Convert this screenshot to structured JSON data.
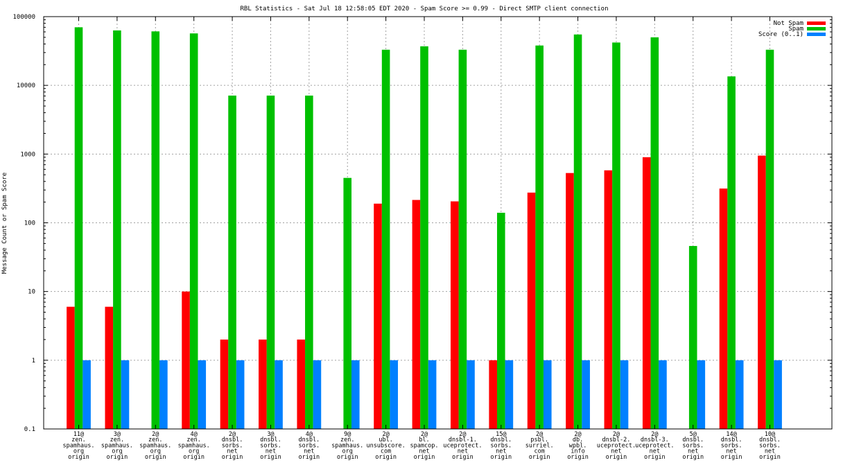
{
  "chart_data": {
    "type": "bar",
    "title": "RBL Statistics - Sat Jul 18 12:58:05 EDT 2020 - Spam Score >= 0.99 - Direct SMTP client connection",
    "ylabel": "Message Count or Spam Score",
    "xlabel": "",
    "yscale": "log",
    "ylim": [
      0.1,
      100000
    ],
    "yticks": [
      "0.1",
      "1",
      "10",
      "100",
      "1000",
      "10000",
      "100000"
    ],
    "grid": true,
    "legend_position": "top-right",
    "categories": [
      [
        "11@",
        "zen.",
        "spamhaus.",
        "org",
        "origin"
      ],
      [
        "3@",
        "zen.",
        "spamhaus.",
        "org",
        "origin"
      ],
      [
        "2@",
        "zen.",
        "spamhaus.",
        "org",
        "origin"
      ],
      [
        "4@",
        "zen.",
        "spamhaus.",
        "org",
        "origin"
      ],
      [
        "2@",
        "dnsbl.",
        "sorbs.",
        "net",
        "origin"
      ],
      [
        "3@",
        "dnsbl.",
        "sorbs.",
        "net",
        "origin"
      ],
      [
        "4@",
        "dnsbl.",
        "sorbs.",
        "net",
        "origin"
      ],
      [
        "9@",
        "zen.",
        "spamhaus.",
        "org",
        "origin"
      ],
      [
        "2@",
        "ubl.",
        "unsubscore.",
        "com",
        "origin"
      ],
      [
        "2@",
        "bl.",
        "spamcop.",
        "net",
        "origin"
      ],
      [
        "2@",
        "dnsbl-1.",
        "uceprotect.",
        "net",
        "origin"
      ],
      [
        "15@",
        "dnsbl.",
        "sorbs.",
        "net",
        "origin"
      ],
      [
        "2@",
        "psbl.",
        "surriel.",
        "com",
        "origin"
      ],
      [
        "2@",
        "db.",
        "wpbl.",
        "info",
        "origin"
      ],
      [
        "2@",
        "dnsbl-2.",
        "uceprotect.",
        "net",
        "origin"
      ],
      [
        "2@",
        "dnsbl-3.",
        "uceprotect.",
        "net",
        "origin"
      ],
      [
        "5@",
        "dnsbl.",
        "sorbs.",
        "net",
        "origin"
      ],
      [
        "14@",
        "dnsbl.",
        "sorbs.",
        "net",
        "origin"
      ],
      [
        "10@",
        "dnsbl.",
        "sorbs.",
        "net",
        "origin"
      ]
    ],
    "series": [
      {
        "name": "Not Spam",
        "color": "#ff0000",
        "values": [
          6,
          6,
          null,
          10,
          2,
          2,
          2,
          null,
          190,
          215,
          205,
          1,
          275,
          530,
          580,
          900,
          null,
          315,
          950
        ]
      },
      {
        "name": "Spam",
        "color": "#00c000",
        "values": [
          70000,
          63000,
          61000,
          57000,
          7100,
          7100,
          7100,
          450,
          33000,
          37000,
          33000,
          140,
          38000,
          55000,
          42000,
          50000,
          46,
          13500,
          33000
        ]
      },
      {
        "name": "Score (0..1)",
        "color": "#0080ff",
        "values": [
          1,
          1,
          1,
          1,
          1,
          1,
          1,
          1,
          1,
          1,
          1,
          1,
          1,
          1,
          1,
          1,
          1,
          1,
          1
        ]
      }
    ]
  }
}
